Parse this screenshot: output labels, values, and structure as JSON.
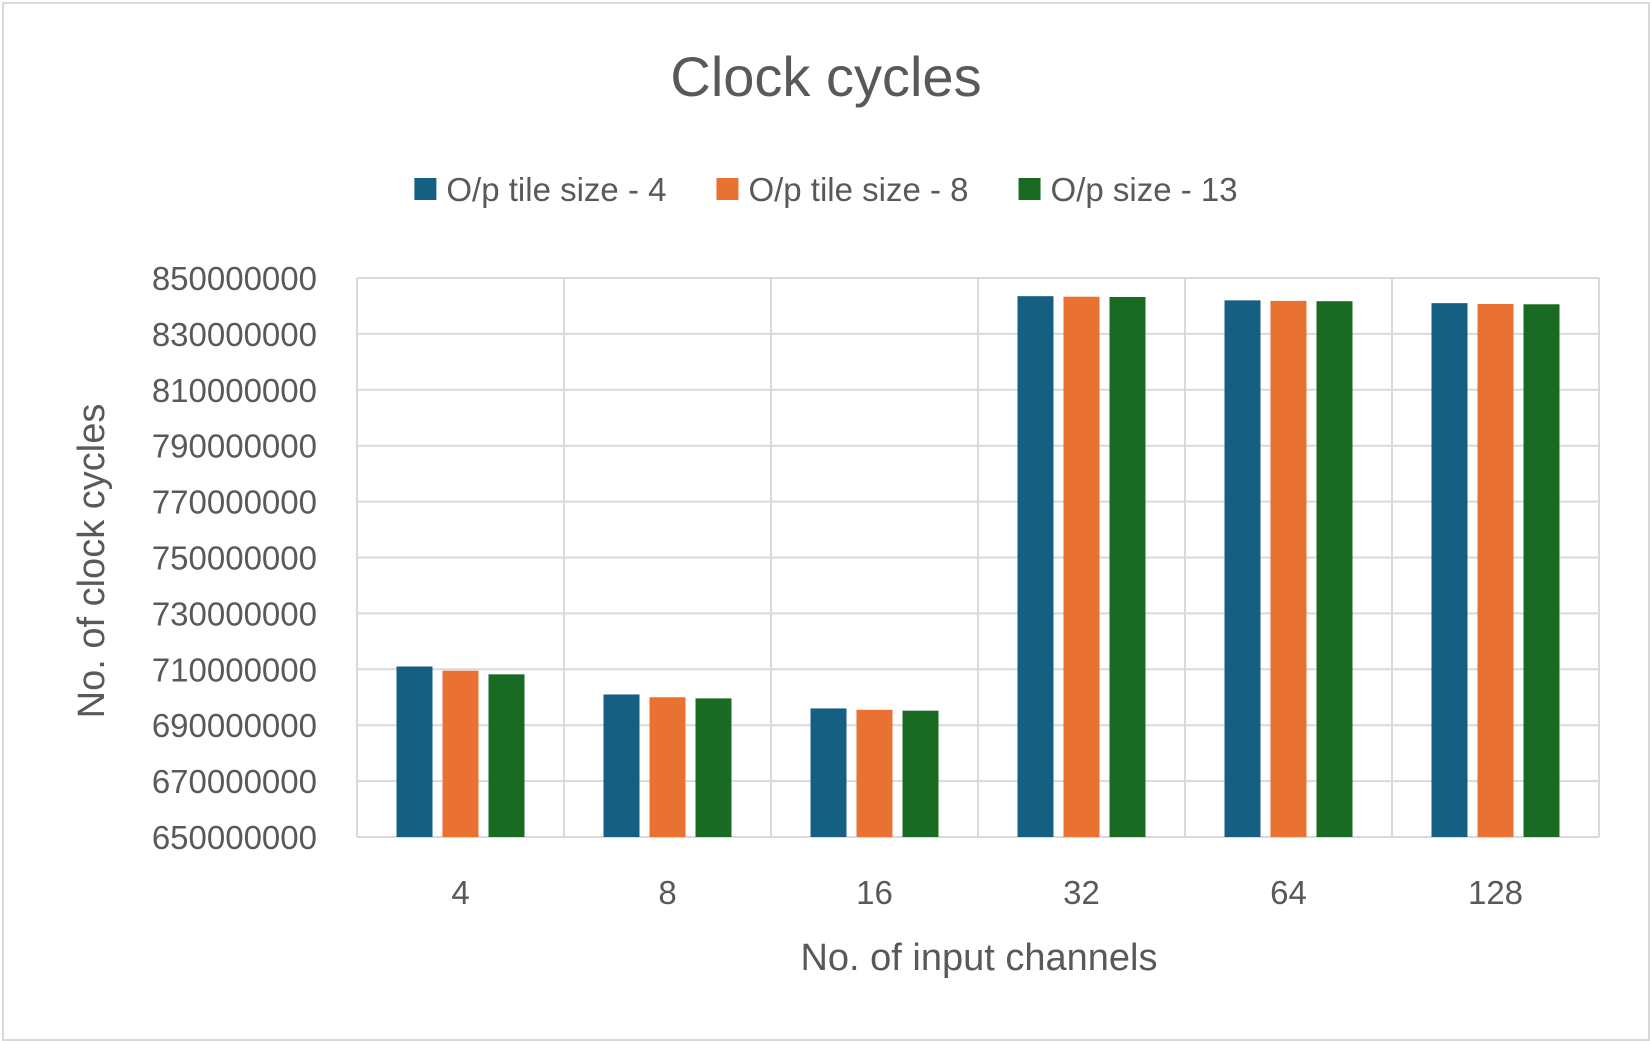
{
  "chart_data": {
    "type": "bar",
    "title": "Clock cycles",
    "xlabel": "No. of input channels",
    "ylabel": "No. of clock cycles",
    "categories": [
      "4",
      "8",
      "16",
      "32",
      "64",
      "128"
    ],
    "series": [
      {
        "name": "O/p tile size - 4",
        "color": "#156082",
        "values": [
          711000000,
          701000000,
          696000000,
          843500000,
          842000000,
          841000000
        ]
      },
      {
        "name": "O/p tile size - 8",
        "color": "#E97132",
        "values": [
          709500000,
          700000000,
          695500000,
          843300000,
          841800000,
          840700000
        ]
      },
      {
        "name": "O/p size - 13",
        "color": "#196B24",
        "values": [
          708200000,
          699600000,
          695200000,
          843200000,
          841700000,
          840600000
        ]
      }
    ],
    "ylim": [
      650000000,
      850000000
    ],
    "yticks": [
      "650000000",
      "670000000",
      "690000000",
      "710000000",
      "730000000",
      "750000000",
      "770000000",
      "790000000",
      "810000000",
      "830000000",
      "850000000"
    ],
    "grid": "on",
    "legend_position": "top"
  }
}
